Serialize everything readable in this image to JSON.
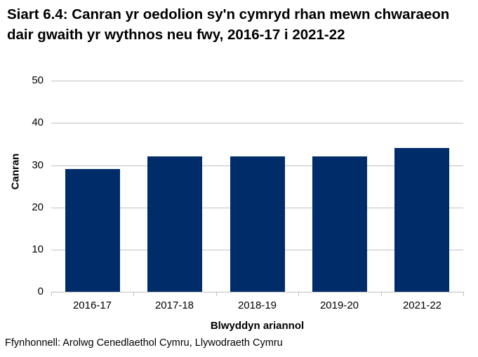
{
  "chart_data": {
    "type": "bar",
    "title": "Siart 6.4: Canran yr oedolion sy'n cymryd rhan mewn chwaraeon dair gwaith yr wythnos neu fwy, 2016-17 i 2021-22",
    "xlabel": "Blwyddyn ariannol",
    "ylabel": "Canran",
    "categories": [
      "2016-17",
      "2017-18",
      "2018-19",
      "2019-20",
      "2021-22"
    ],
    "values": [
      29,
      32,
      32,
      32,
      34
    ],
    "ylim": [
      0,
      50
    ],
    "yticks": [
      "50",
      "40",
      "30",
      "20",
      "10",
      "0"
    ],
    "grid": true,
    "legend": "none",
    "bar_color": "#002d6a",
    "source": "Ffynhonnell: Arolwg Cenedlaethol Cymru, Llywodraeth Cymru"
  }
}
